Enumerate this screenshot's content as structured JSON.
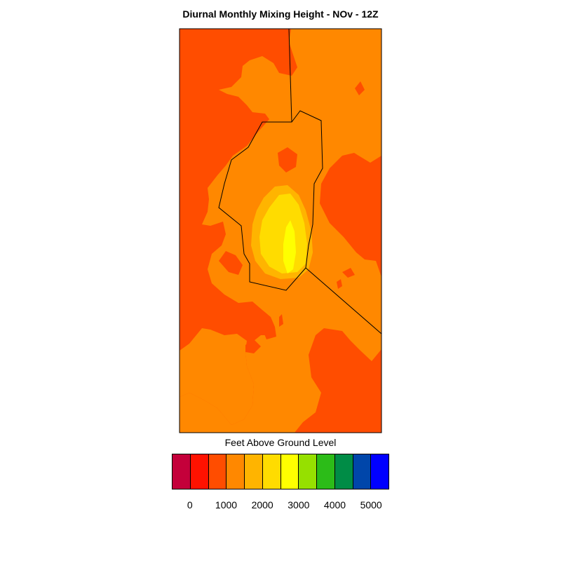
{
  "title": "Diurnal Monthly Mixing Height - NOv - 12Z",
  "colorbar": {
    "title": "Feet Above Ground Level",
    "colors": [
      "#c4003a",
      "#ff1200",
      "#ff4d00",
      "#ff8800",
      "#ffb400",
      "#ffdc00",
      "#ffff00",
      "#96e000",
      "#2cbc18",
      "#008c46",
      "#0046aa",
      "#0000ff"
    ],
    "tick_labels": [
      "0",
      "1000",
      "2000",
      "3000",
      "4000",
      "5000"
    ]
  },
  "map_legend_colors": {
    "low": "#ff4d00",
    "mid": "#ff8800",
    "high1": "#ffb400",
    "high2": "#ffdc00",
    "peak": "#ffff00",
    "boundary": "#000000"
  }
}
